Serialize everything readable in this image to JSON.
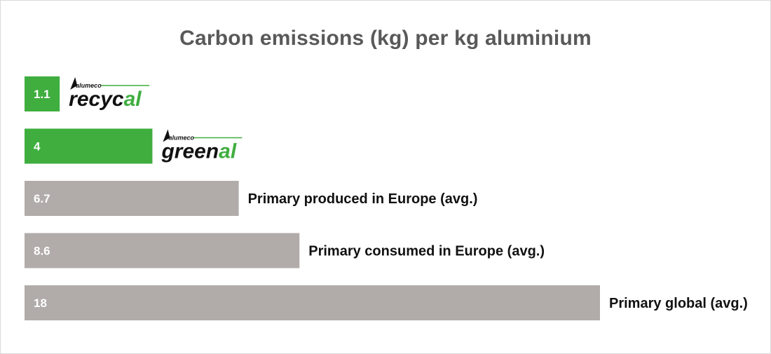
{
  "chart_data": {
    "type": "bar",
    "orientation": "horizontal",
    "title": "Carbon emissions (kg) per kg aluminium",
    "categories": [
      "",
      "",
      "Primary produced in Europe (avg.)",
      "Primary consumed in Europe (avg.)",
      "Primary global (avg.)"
    ],
    "values": [
      1.1,
      4,
      6.7,
      8.6,
      18
    ],
    "value_labels": [
      "1.1",
      "4",
      "6.7",
      "8.6",
      "18"
    ],
    "logos": [
      {
        "brand": "alumeco",
        "name_start": "recyc",
        "name_end": "al"
      },
      {
        "brand": "alumeco",
        "name_start": "green",
        "name_end": "al"
      },
      null,
      null,
      null
    ],
    "bar_colors": [
      "#3fae3f",
      "#3fae3f",
      "#b1aba9",
      "#b1aba9",
      "#b1aba9"
    ],
    "xlim": [
      0,
      18
    ],
    "grid": false,
    "legend": "none"
  }
}
